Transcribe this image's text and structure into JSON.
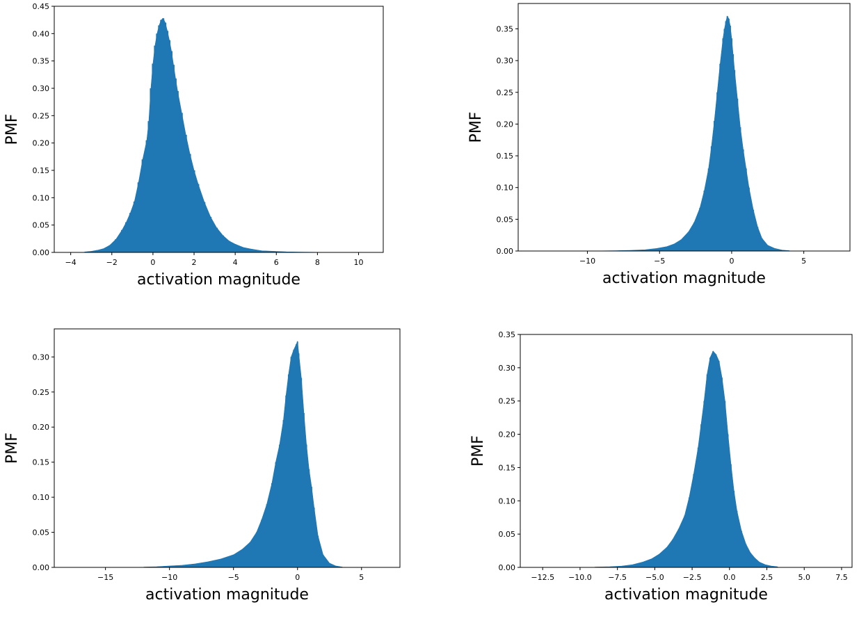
{
  "chart_data": [
    {
      "type": "bar",
      "xlabel": "activation magnitude",
      "ylabel": "PMF",
      "xlim": [
        -4.8,
        11.2
      ],
      "ylim": [
        0,
        0.45
      ],
      "xticks": [
        -4,
        -2,
        0,
        2,
        4,
        6,
        8,
        10
      ],
      "xtick_labels": [
        "−4",
        "−2",
        "0",
        "2",
        "4",
        "6",
        "8",
        "10"
      ],
      "yticks": [
        0.0,
        0.05,
        0.1,
        0.15,
        0.2,
        0.25,
        0.3,
        0.35,
        0.4,
        0.45
      ],
      "ytick_labels": [
        "0.00",
        "0.05",
        "0.10",
        "0.15",
        "0.20",
        "0.25",
        "0.30",
        "0.35",
        "0.40",
        "0.45"
      ],
      "color": "#1f77b4",
      "bin_width": 0.1,
      "x": [
        -3.3,
        -3.0,
        -2.7,
        -2.4,
        -2.1,
        -1.8,
        -1.5,
        -1.3,
        -1.1,
        -0.9,
        -0.7,
        -0.5,
        -0.3,
        -0.2,
        -0.1,
        0.0,
        0.1,
        0.2,
        0.3,
        0.4,
        0.5,
        0.6,
        0.7,
        0.8,
        0.9,
        1.0,
        1.1,
        1.2,
        1.4,
        1.6,
        1.8,
        2.0,
        2.2,
        2.5,
        2.8,
        3.1,
        3.4,
        3.7,
        4.0,
        4.4,
        4.8,
        5.3,
        5.9,
        6.5,
        7.2,
        8.0
      ],
      "values": [
        0.001,
        0.002,
        0.004,
        0.007,
        0.013,
        0.024,
        0.041,
        0.055,
        0.072,
        0.093,
        0.128,
        0.17,
        0.205,
        0.24,
        0.3,
        0.345,
        0.378,
        0.4,
        0.415,
        0.425,
        0.428,
        0.42,
        0.405,
        0.388,
        0.368,
        0.343,
        0.318,
        0.295,
        0.255,
        0.215,
        0.18,
        0.15,
        0.125,
        0.092,
        0.065,
        0.045,
        0.031,
        0.021,
        0.015,
        0.009,
        0.006,
        0.003,
        0.002,
        0.001,
        0.0005,
        0.0002
      ]
    },
    {
      "type": "bar",
      "xlabel": "activation magnitude",
      "ylabel": "PMF",
      "xlim": [
        -14.8,
        8.2
      ],
      "ylim": [
        0,
        0.39
      ],
      "xticks": [
        -10,
        -5,
        0,
        5
      ],
      "xtick_labels": [
        "−10",
        "−5",
        "0",
        "5"
      ],
      "yticks": [
        0.0,
        0.05,
        0.1,
        0.15,
        0.2,
        0.25,
        0.3,
        0.35
      ],
      "ytick_labels": [
        "0.00",
        "0.05",
        "0.10",
        "0.15",
        "0.20",
        "0.25",
        "0.30",
        "0.35"
      ],
      "color": "#1f77b4",
      "bin_width": 0.1,
      "x": [
        -9.0,
        -8.0,
        -7.0,
        -6.0,
        -5.2,
        -4.5,
        -4.0,
        -3.5,
        -3.0,
        -2.6,
        -2.2,
        -1.9,
        -1.6,
        -1.4,
        -1.2,
        -1.0,
        -0.8,
        -0.6,
        -0.5,
        -0.4,
        -0.3,
        -0.2,
        -0.1,
        0.0,
        0.1,
        0.2,
        0.4,
        0.6,
        0.8,
        1.0,
        1.2,
        1.5,
        1.8,
        2.1,
        2.5,
        3.0,
        3.5,
        4.0
      ],
      "values": [
        0.0002,
        0.0005,
        0.001,
        0.002,
        0.004,
        0.007,
        0.011,
        0.018,
        0.03,
        0.045,
        0.068,
        0.095,
        0.13,
        0.165,
        0.205,
        0.25,
        0.295,
        0.335,
        0.35,
        0.362,
        0.37,
        0.366,
        0.355,
        0.335,
        0.31,
        0.285,
        0.24,
        0.195,
        0.16,
        0.13,
        0.1,
        0.065,
        0.038,
        0.02,
        0.009,
        0.004,
        0.0015,
        0.0005
      ]
    },
    {
      "type": "bar",
      "xlabel": "activation magnitude",
      "ylabel": "PMF",
      "xlim": [
        -19.0,
        8.0
      ],
      "ylim": [
        0,
        0.34
      ],
      "xticks": [
        -15,
        -10,
        -5,
        0,
        5
      ],
      "xtick_labels": [
        "−15",
        "−10",
        "−5",
        "0",
        "5"
      ],
      "yticks": [
        0.0,
        0.05,
        0.1,
        0.15,
        0.2,
        0.25,
        0.3
      ],
      "ytick_labels": [
        "0.00",
        "0.05",
        "0.10",
        "0.15",
        "0.20",
        "0.25",
        "0.30"
      ],
      "color": "#1f77b4",
      "bin_width": 0.1,
      "x": [
        -12.0,
        -11.0,
        -10.0,
        -9.0,
        -8.0,
        -7.0,
        -6.0,
        -5.0,
        -4.3,
        -3.7,
        -3.2,
        -2.8,
        -2.4,
        -2.0,
        -1.7,
        -1.4,
        -1.1,
        -0.9,
        -0.7,
        -0.5,
        -0.3,
        -0.1,
        0.0,
        0.1,
        0.3,
        0.5,
        0.7,
        0.9,
        1.1,
        1.3,
        1.6,
        2.0,
        2.5,
        3.0,
        3.5
      ],
      "values": [
        0.0005,
        0.001,
        0.002,
        0.003,
        0.005,
        0.008,
        0.012,
        0.018,
        0.026,
        0.036,
        0.05,
        0.068,
        0.09,
        0.12,
        0.15,
        0.175,
        0.21,
        0.245,
        0.275,
        0.3,
        0.31,
        0.318,
        0.322,
        0.305,
        0.27,
        0.22,
        0.175,
        0.14,
        0.115,
        0.085,
        0.045,
        0.018,
        0.006,
        0.002,
        0.0005
      ]
    },
    {
      "type": "bar",
      "xlabel": "activation magnitude",
      "ylabel": "PMF",
      "xlim": [
        -14.0,
        8.2
      ],
      "ylim": [
        0,
        0.35
      ],
      "xticks": [
        -12.5,
        -10.0,
        -7.5,
        -5.0,
        -2.5,
        0.0,
        2.5,
        5.0,
        7.5
      ],
      "xtick_labels": [
        "−12.5",
        "−10.0",
        "−7.5",
        "−5.0",
        "−2.5",
        "0.0",
        "2.5",
        "5.0",
        "7.5"
      ],
      "yticks": [
        0.0,
        0.05,
        0.1,
        0.15,
        0.2,
        0.25,
        0.3,
        0.35
      ],
      "ytick_labels": [
        "0.00",
        "0.05",
        "0.10",
        "0.15",
        "0.20",
        "0.25",
        "0.30",
        "0.35"
      ],
      "color": "#1f77b4",
      "bin_width": 0.08,
      "x": [
        -9.0,
        -8.0,
        -7.2,
        -6.5,
        -5.8,
        -5.2,
        -4.7,
        -4.2,
        -3.8,
        -3.4,
        -3.0,
        -2.7,
        -2.4,
        -2.1,
        -1.9,
        -1.7,
        -1.5,
        -1.3,
        -1.1,
        -0.9,
        -0.7,
        -0.5,
        -0.3,
        -0.1,
        0.1,
        0.3,
        0.5,
        0.8,
        1.1,
        1.4,
        1.7,
        2.0,
        2.4,
        2.8,
        3.2
      ],
      "values": [
        0.0005,
        0.001,
        0.002,
        0.004,
        0.008,
        0.013,
        0.02,
        0.03,
        0.042,
        0.058,
        0.078,
        0.105,
        0.14,
        0.18,
        0.215,
        0.25,
        0.29,
        0.315,
        0.325,
        0.32,
        0.31,
        0.285,
        0.25,
        0.2,
        0.155,
        0.115,
        0.085,
        0.055,
        0.035,
        0.022,
        0.014,
        0.008,
        0.004,
        0.002,
        0.001
      ]
    }
  ]
}
